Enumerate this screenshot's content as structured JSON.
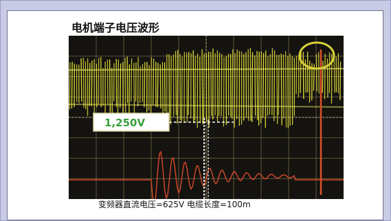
{
  "title": "电机端子电压波形",
  "scope": {
    "peak_label": "1,250V",
    "colors": {
      "background": "#141310",
      "grid": "#a08a5a",
      "yellow_trace": "#e7e43a",
      "red_trace": "#d94a2a",
      "label_text": "#3aa03a",
      "highlight_circle": "#d8d23a"
    }
  },
  "caption": "变频器直流电压=625V 电缆长度=100m"
}
